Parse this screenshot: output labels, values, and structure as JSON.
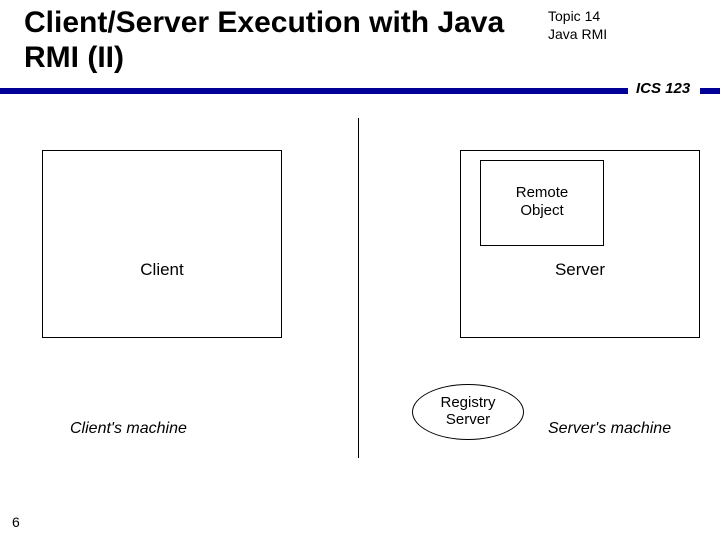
{
  "header": {
    "title": "Client/Server Execution with Java RMI (II)",
    "topic_line1": "Topic 14",
    "topic_line2": "Java RMI",
    "course": "ICS 123",
    "rule_left_style": "left:0; top:88px; width:628px; height:6px; background:#000099; position:absolute;",
    "course_style": "left:636px; top:80px; font-size:15px; font-style:italic; font-weight:bold; position:absolute;",
    "rule_right_style": "left:700px; top:88px; width:20px; height:6px; background:#000099; position:absolute;"
  },
  "diagram": {
    "divider": {
      "style": "left:358px; top:118px; width:1px; height:340px; background:#000; position:absolute;"
    },
    "client_box": {
      "style": "left:42px; top:150px; width:240px; height:188px; border:1px solid #000; position:absolute;",
      "label": "Client",
      "label_style": "left:42px; top:260px; width:240px; text-align:center; font-size:17px; position:absolute;"
    },
    "server_box": {
      "style": "left:460px; top:150px; width:240px; height:188px; border:1px solid #000; position:absolute;",
      "label": "Server",
      "label_style": "left:460px; top:260px; width:240px; text-align:center; font-size:17px; position:absolute;"
    },
    "remote_object": {
      "style": "left:480px; top:160px; width:124px; height:86px; border:1px solid #000; position:absolute;",
      "label_line1": "Remote",
      "label_line2": "Object",
      "label_style": "left:480px; top:184px; width:124px; text-align:center; font-size:15px; line-height:1.2; position:absolute;"
    },
    "registry": {
      "style": "left:412px; top:384px; width:112px; height:56px; border:1px solid #000; border-radius:50%; background:#fff; position:absolute;",
      "label_line1": "Registry",
      "label_line2": "Server",
      "label_style": "left:412px; top:394px; width:112px; text-align:center; font-size:15px; line-height:1.15; position:absolute;"
    },
    "client_machine": {
      "text": "Client's machine",
      "style": "left:70px; top:420px; width:200px; text-align:left; font-size:16px; font-style:italic; position:absolute;"
    },
    "server_machine": {
      "text": "Server's machine",
      "style": "left:548px; top:420px; width:200px; text-align:left; font-size:16px; font-style:italic; position:absolute;"
    }
  },
  "footer": {
    "slide_number": "6"
  },
  "colors": {
    "accent": "#000099",
    "text": "#000000",
    "background": "#ffffff"
  }
}
